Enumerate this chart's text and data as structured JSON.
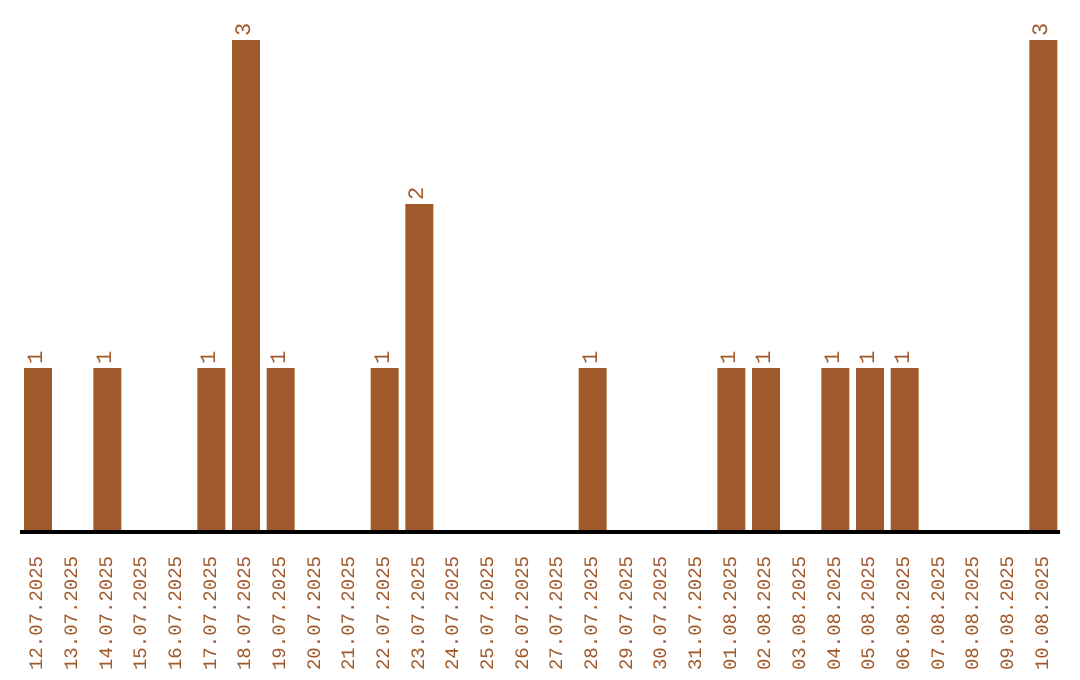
{
  "chart_data": {
    "type": "bar",
    "categories": [
      "12.07.2025",
      "13.07.2025",
      "14.07.2025",
      "15.07.2025",
      "16.07.2025",
      "17.07.2025",
      "18.07.2025",
      "19.07.2025",
      "20.07.2025",
      "21.07.2025",
      "22.07.2025",
      "23.07.2025",
      "24.07.2025",
      "25.07.2025",
      "26.07.2025",
      "27.07.2025",
      "28.07.2025",
      "29.07.2025",
      "30.07.2025",
      "31.07.2025",
      "01.08.2025",
      "02.08.2025",
      "03.08.2025",
      "04.08.2025",
      "05.08.2025",
      "06.08.2025",
      "07.08.2025",
      "08.08.2025",
      "09.08.2025",
      "10.08.2025"
    ],
    "values": [
      1,
      0,
      1,
      0,
      0,
      1,
      3,
      1,
      0,
      0,
      1,
      2,
      0,
      0,
      0,
      0,
      1,
      0,
      0,
      0,
      1,
      1,
      0,
      1,
      1,
      1,
      0,
      0,
      0,
      3
    ],
    "value_labels": [
      "1",
      null,
      "1",
      null,
      null,
      "1",
      "3",
      "1",
      null,
      null,
      "1",
      "2",
      null,
      null,
      null,
      null,
      "1",
      null,
      null,
      null,
      "1",
      "1",
      null,
      "1",
      "1",
      "1",
      null,
      null,
      null,
      "3"
    ],
    "color": "#a0592a",
    "grid": false,
    "legend": false
  }
}
